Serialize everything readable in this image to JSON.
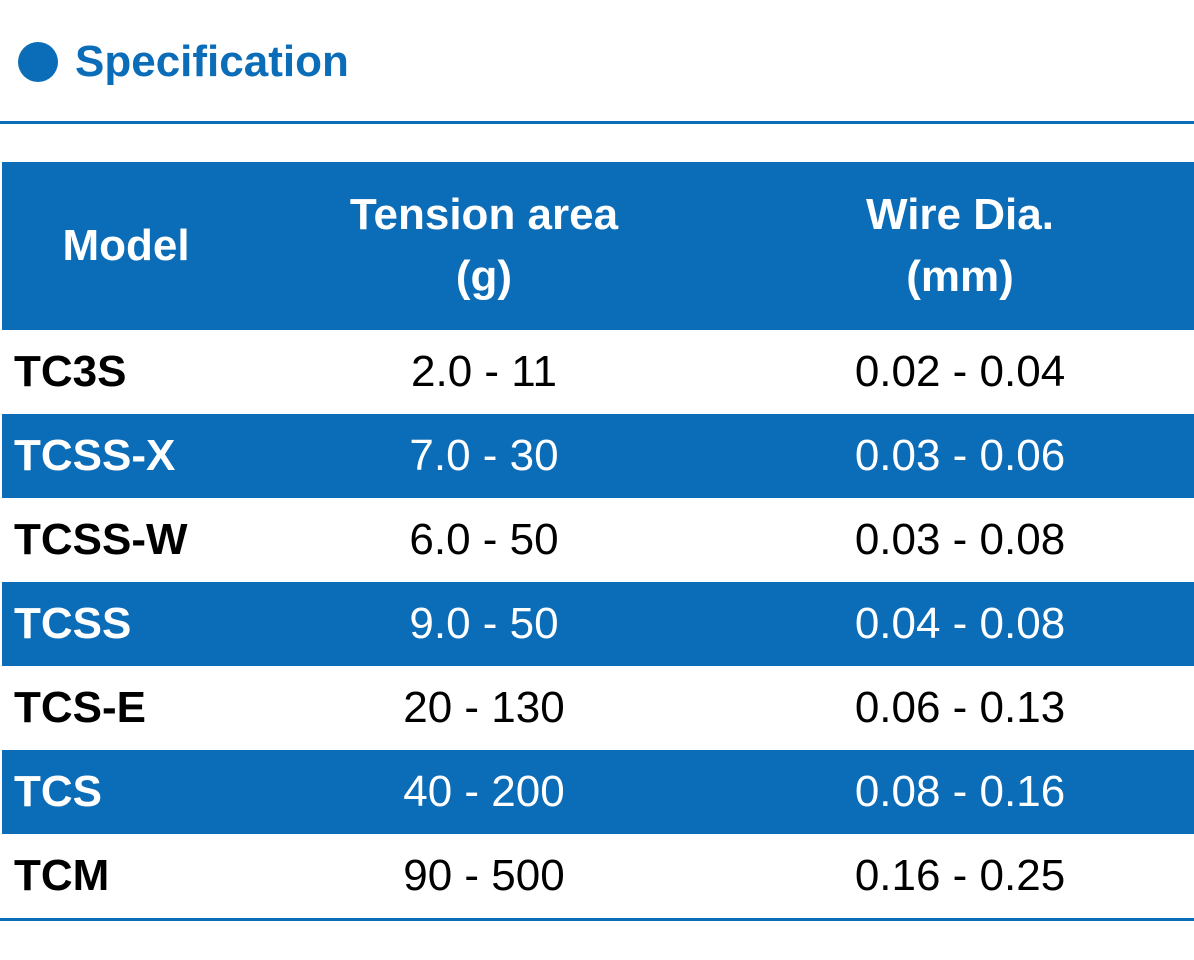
{
  "header": {
    "title": "Specification"
  },
  "table": {
    "columns": [
      [
        "Model"
      ],
      [
        "Tension area",
        "(g)"
      ],
      [
        "Wire Dia.",
        "(mm)"
      ]
    ],
    "rows": [
      [
        "TC3S",
        "2.0 - 11",
        "0.02 - 0.04"
      ],
      [
        "TCSS-X",
        "7.0 - 30",
        "0.03 - 0.06"
      ],
      [
        "TCSS-W",
        "6.0 - 50",
        "0.03 - 0.08"
      ],
      [
        "TCSS",
        "9.0 - 50",
        "0.04 - 0.08"
      ],
      [
        "TCS-E",
        "20 - 130",
        "0.06 - 0.13"
      ],
      [
        "TCS",
        "40 - 200",
        "0.08 - 0.16"
      ],
      [
        "TCM",
        "90 - 500",
        "0.16 - 0.25"
      ]
    ]
  }
}
